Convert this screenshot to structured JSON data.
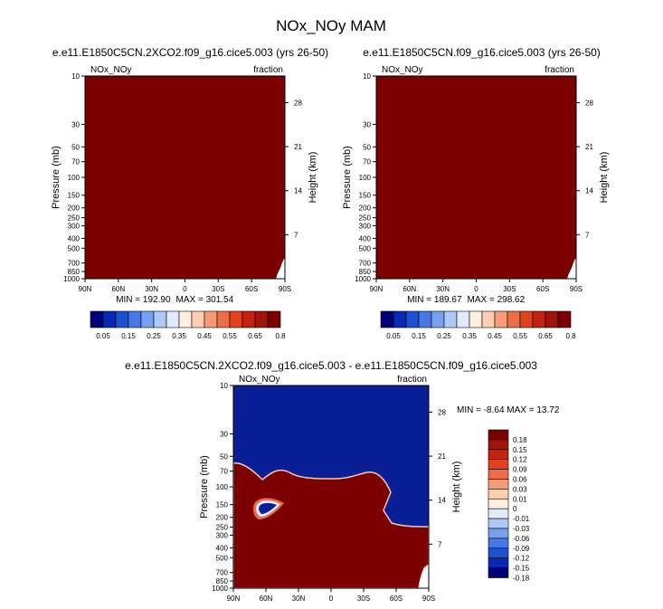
{
  "page_title": "NOx_NOy MAM",
  "colors": {
    "ramp": [
      "#000078",
      "#0a28b4",
      "#1e50d2",
      "#4678e6",
      "#78a0f0",
      "#afc8fa",
      "#e1ebff",
      "#ffeee1",
      "#ffcdaf",
      "#f59b78",
      "#eb6e46",
      "#e1411e",
      "#c3230f",
      "#a0140a",
      "#7d0000"
    ],
    "panel_fill": "#7d0000",
    "diff_neg": "#0a1e96"
  },
  "chart_data": [
    {
      "type": "heatmap",
      "id": "panel-a",
      "title": "e.e11.E1850C5CN.2XCO2.f09_g16.cice5.003 (yrs 26-50)",
      "left_label": "NOx_NOy",
      "right_label": "fraction",
      "xlabel": "",
      "ylabel": "Pressure (mb)",
      "ylabel_right": "Height (km)",
      "x_ticks": [
        "90N",
        "60N",
        "30N",
        "0",
        "30S",
        "60S",
        "90S"
      ],
      "y_ticks": [
        "10",
        "30",
        "50",
        "70",
        "100",
        "150",
        "200",
        "250",
        "300",
        "400",
        "500",
        "700",
        "850",
        "1000"
      ],
      "y_ticks_right": [
        "28",
        "21",
        "14",
        "7"
      ],
      "min_label": "MIN = 192.90",
      "max_label": "MAX = 301.54",
      "colorbar_labels": [
        "0.05",
        "0.15",
        "0.25",
        "0.35",
        "0.45",
        "0.55",
        "0.65",
        "0.8"
      ]
    },
    {
      "type": "heatmap",
      "id": "panel-b",
      "title": "e.e11.E1850C5CN.f09_g16.cice5.003 (yrs 26-50)",
      "left_label": "NOx_NOy",
      "right_label": "fraction",
      "xlabel": "",
      "ylabel": "Pressure (mb)",
      "ylabel_right": "Height (km)",
      "x_ticks": [
        "90N",
        "60N",
        "30N",
        "0",
        "30S",
        "60S",
        "90S"
      ],
      "y_ticks": [
        "10",
        "30",
        "50",
        "70",
        "100",
        "150",
        "200",
        "250",
        "300",
        "400",
        "500",
        "700",
        "850",
        "1000"
      ],
      "y_ticks_right": [
        "28",
        "21",
        "14",
        "7"
      ],
      "min_label": "MIN = 189.67",
      "max_label": "MAX = 298.62",
      "colorbar_labels": [
        "0.05",
        "0.15",
        "0.25",
        "0.35",
        "0.45",
        "0.55",
        "0.65",
        "0.8"
      ]
    },
    {
      "type": "heatmap",
      "id": "panel-diff",
      "title": "e.e11.E1850C5CN.2XCO2.f09_g16.cice5.003 - e.e11.E1850C5CN.f09_g16.cice5.003",
      "left_label": "NOx_NOy",
      "right_label": "fraction",
      "xlabel": "",
      "ylabel": "Pressure (mb)",
      "ylabel_right": "Height (km)",
      "x_ticks": [
        "90N",
        "60N",
        "30N",
        "0",
        "30S",
        "60S",
        "90S"
      ],
      "y_ticks": [
        "10",
        "30",
        "50",
        "70",
        "100",
        "150",
        "200",
        "250",
        "300",
        "400",
        "500",
        "700",
        "850",
        "1000"
      ],
      "y_ticks_right": [
        "28",
        "21",
        "14",
        "7"
      ],
      "minmax_label": "MIN = -8.64  MAX = 13.72",
      "colorbar_labels": [
        "0.18",
        "0.15",
        "0.12",
        "0.09",
        "0.06",
        "0.03",
        "0.01",
        "0",
        "-0.01",
        "-0.03",
        "-0.06",
        "-0.09",
        "-0.12",
        "-0.15",
        "-0.18"
      ]
    }
  ]
}
